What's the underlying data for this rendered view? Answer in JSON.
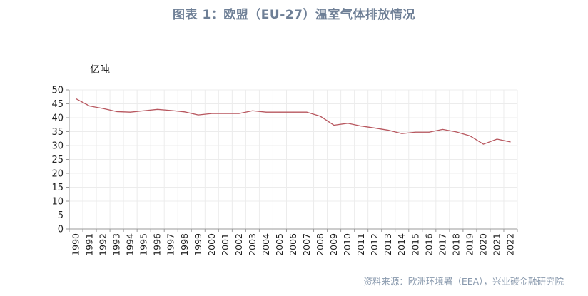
{
  "header": {
    "title": "图表 1：欧盟（EU-27）温室气体排放情况"
  },
  "source": "资料来源：欧洲环境署（EEA），兴业碳金融研究院",
  "colors": {
    "title": "#6e7f96",
    "line": "#b8575f",
    "grid": "#ececec",
    "axis": "#9a9a9a",
    "source": "#8a9aae"
  },
  "chart_data": {
    "type": "line",
    "title": "图表 1：欧盟（EU-27）温室气体排放情况",
    "ylabel": "亿吨",
    "xlabel": "",
    "ylim": [
      0,
      50
    ],
    "yticks": [
      0,
      5,
      10,
      15,
      20,
      25,
      30,
      35,
      40,
      45,
      50
    ],
    "grid": true,
    "legend": "none",
    "categories": [
      "1990",
      "1991",
      "1992",
      "1993",
      "1994",
      "1995",
      "1996",
      "1997",
      "1998",
      "1999",
      "2000",
      "2001",
      "2002",
      "2003",
      "2004",
      "2005",
      "2006",
      "2007",
      "2008",
      "2009",
      "2010",
      "2011",
      "2012",
      "2013",
      "2014",
      "2015",
      "2016",
      "2017",
      "2018",
      "2019",
      "2020",
      "2021",
      "2022"
    ],
    "series": [
      {
        "values": [
          46.8,
          44.2,
          43.3,
          42.2,
          42.0,
          42.5,
          43.0,
          42.6,
          42.1,
          41.0,
          41.5,
          41.5,
          41.5,
          42.5,
          42.0,
          42.0,
          42.0,
          42.0,
          40.5,
          37.3,
          38.0,
          37.0,
          36.3,
          35.5,
          34.3,
          34.8,
          34.8,
          35.8,
          34.9,
          33.5,
          30.5,
          32.3,
          31.3
        ]
      }
    ]
  }
}
